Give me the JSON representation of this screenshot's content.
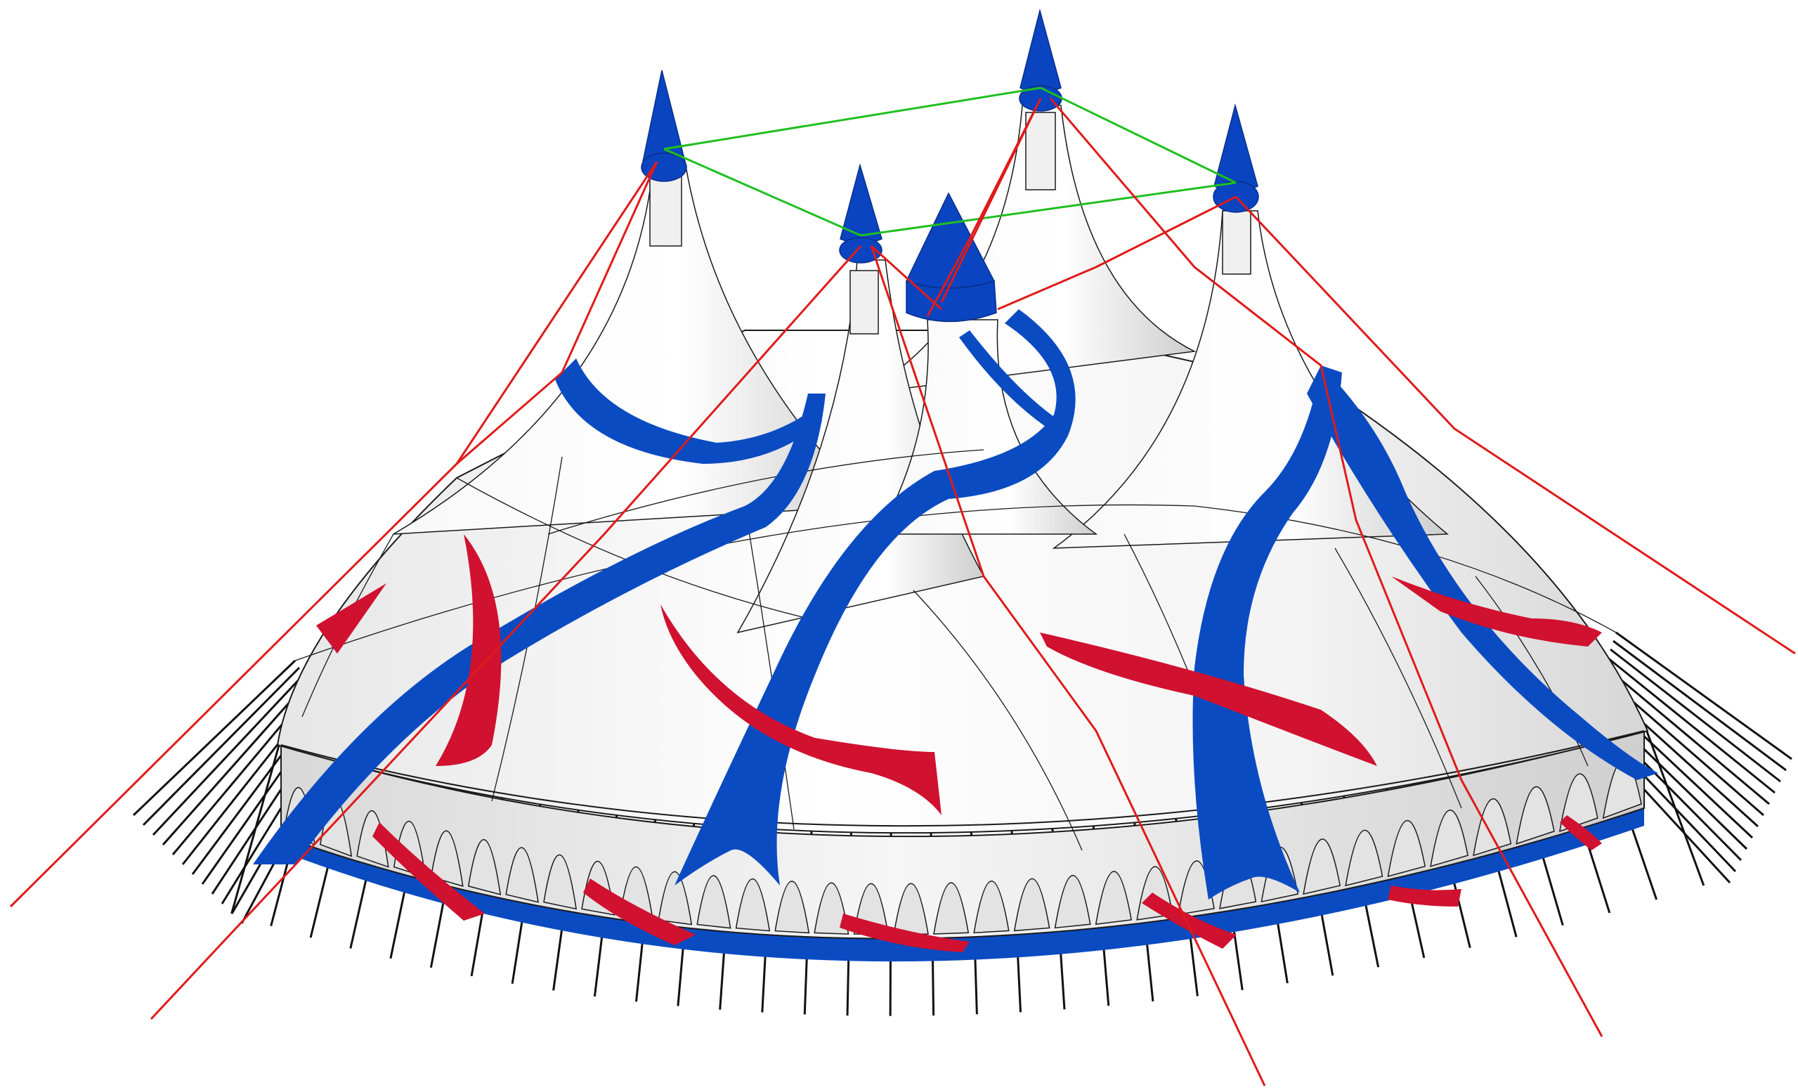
{
  "scene": {
    "subject": "circus-big-top-tent",
    "colors": {
      "canvas": "#ffffff",
      "tent_fabric": "#f4f4f4",
      "tent_shade": "#d9d9d9",
      "blue_accent": "#0b4bc2",
      "red_accent": "#d0112f",
      "mast_cone": "#0a44c0",
      "guy_rope_red": "#e01a1a",
      "mast_link_green": "#1fbf1f",
      "outline": "#1a1a1a",
      "stake_line": "#111111"
    }
  }
}
